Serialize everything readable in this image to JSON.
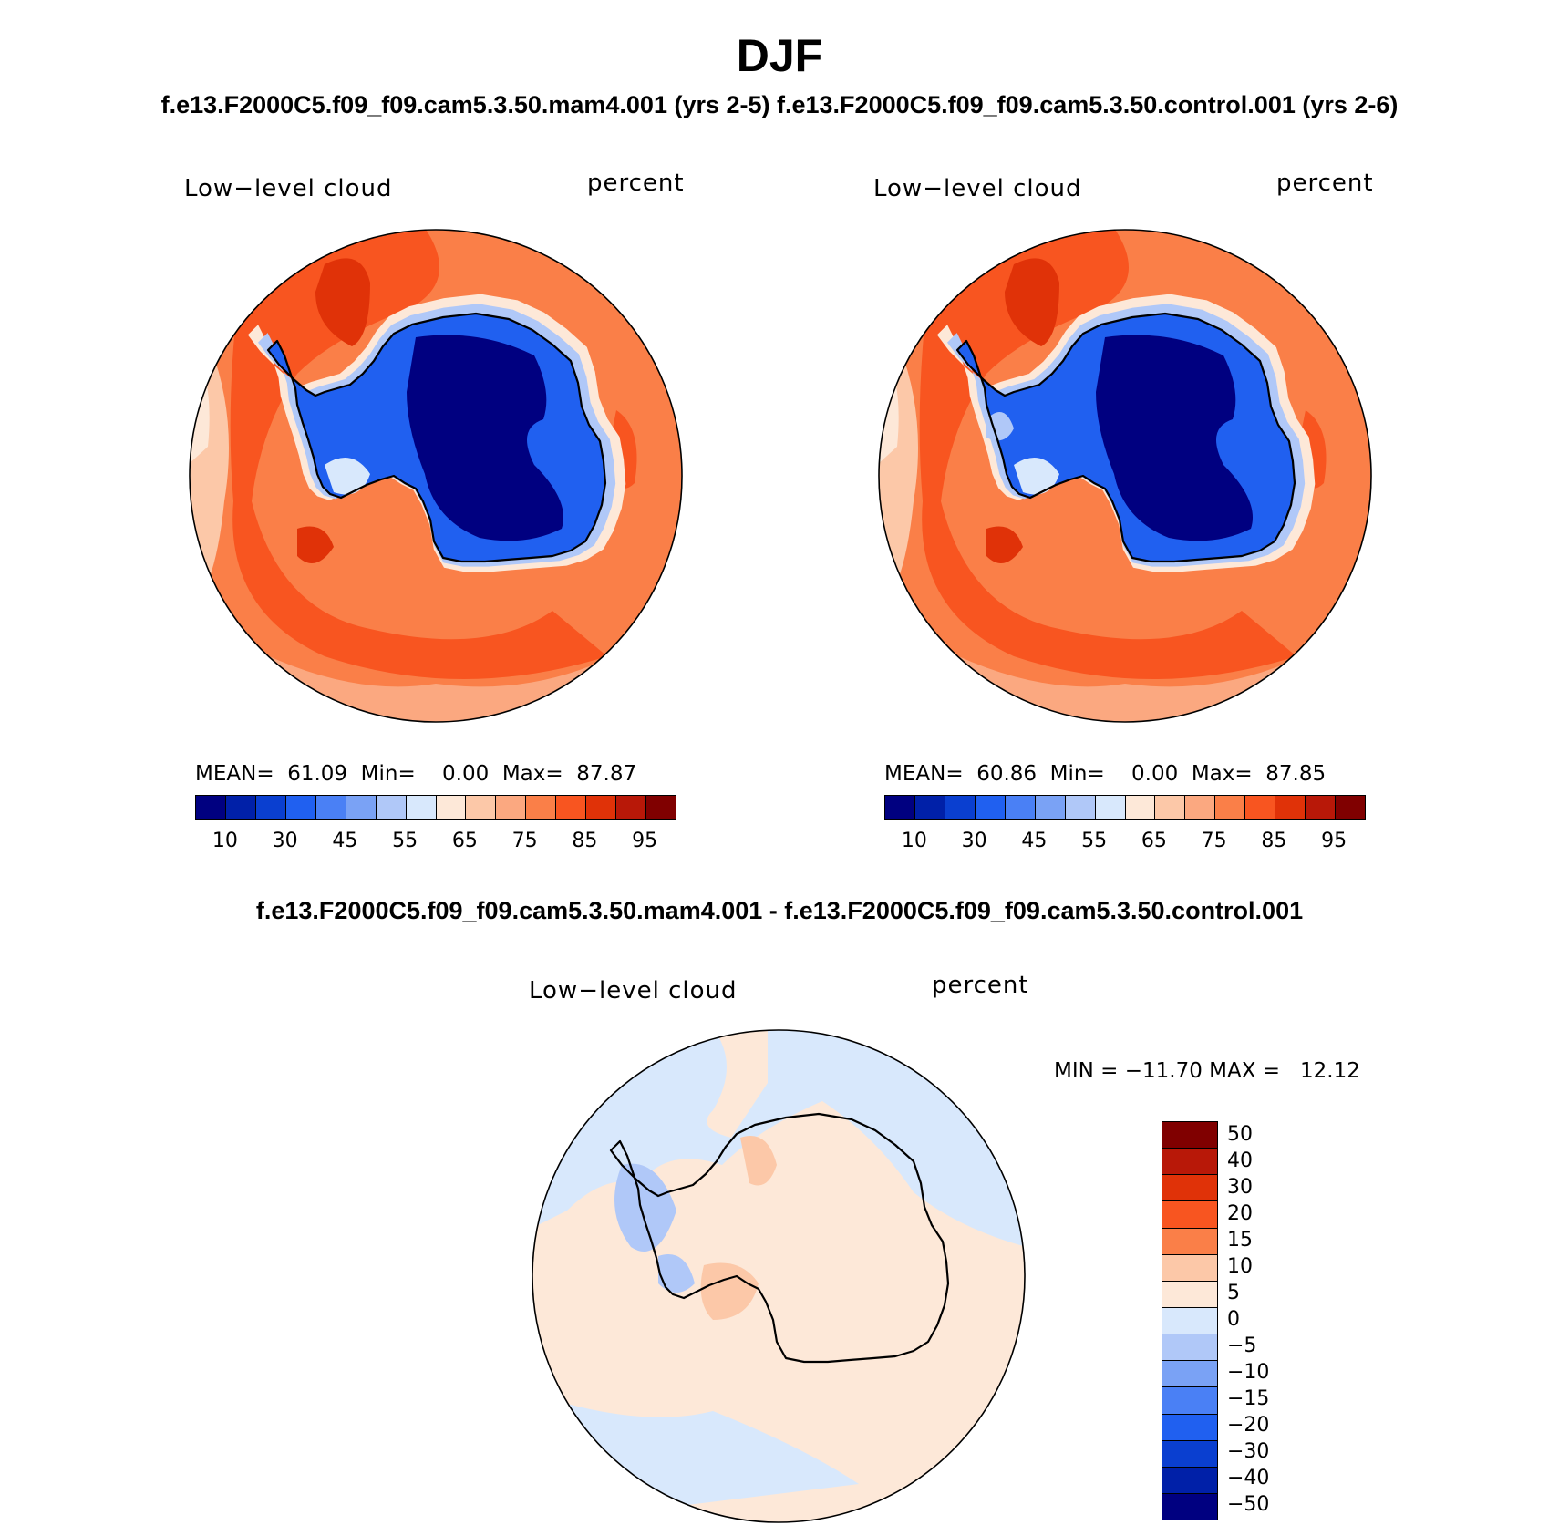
{
  "title": "DJF",
  "subtitle_top": "f.e13.F2000C5.f09_f09.cam5.3.50.mam4.001 (yrs 2-5) f.e13.F2000C5.f09_f09.cam5.3.50.control.001 (yrs 2-6)",
  "subtitle_diff": "f.e13.F2000C5.f09_f09.cam5.3.50.mam4.001 - f.e13.F2000C5.f09_f09.cam5.3.50.control.001",
  "panels": [
    {
      "variable": "Low−level cloud",
      "units": "percent",
      "stats": "MEAN=  61.09  Min=    0.00  Max=  87.87",
      "mean": 61.09,
      "min": 0.0,
      "max": 87.87
    },
    {
      "variable": "Low−level cloud",
      "units": "percent",
      "stats": "MEAN=  60.86  Min=    0.00  Max=  87.85",
      "mean": 60.86,
      "min": 0.0,
      "max": 87.85
    }
  ],
  "diff_panel": {
    "variable": "Low−level cloud",
    "units": "percent",
    "stats": "MIN = −11.70 MAX =   12.12",
    "min": -11.7,
    "max": 12.12
  },
  "colorbar_abs": {
    "colors": [
      "#000080",
      "#0020a8",
      "#0a3fd0",
      "#2060f0",
      "#4a80f5",
      "#7aa2f5",
      "#b0c8f8",
      "#d8e8fc",
      "#fde8d8",
      "#fcc8a8",
      "#fba880",
      "#fa7f48",
      "#f85520",
      "#e03208",
      "#b81808",
      "#800000"
    ],
    "tick_labels": [
      "10",
      "30",
      "45",
      "55",
      "65",
      "75",
      "85",
      "95"
    ]
  },
  "colorbar_diff": {
    "colors": [
      "#800000",
      "#b81808",
      "#e03208",
      "#f85520",
      "#fa7f48",
      "#fcc8a8",
      "#fde8d8",
      "#d8e8fc",
      "#b0c8f8",
      "#7aa2f5",
      "#4a80f5",
      "#2060f0",
      "#0a3fd0",
      "#0020a8",
      "#000080"
    ],
    "tick_labels": [
      "50",
      "40",
      "30",
      "20",
      "15",
      "10",
      "5",
      "0",
      "−5",
      "−10",
      "−15",
      "−20",
      "−30",
      "−40",
      "−50"
    ]
  }
}
